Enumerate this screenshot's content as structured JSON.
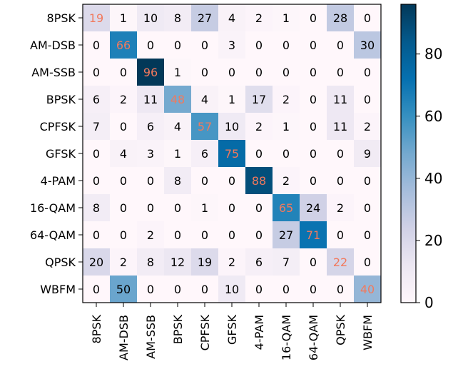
{
  "chart_data": {
    "type": "heatmap",
    "title": "",
    "xlabel": "",
    "ylabel": "",
    "x_categories": [
      "8PSK",
      "AM-DSB",
      "AM-SSB",
      "BPSK",
      "CPFSK",
      "GFSK",
      "4-PAM",
      "16-QAM",
      "64-QAM",
      "QPSK",
      "WBFM"
    ],
    "y_categories": [
      "8PSK",
      "AM-DSB",
      "AM-SSB",
      "BPSK",
      "CPFSK",
      "GFSK",
      "4-PAM",
      "16-QAM",
      "64-QAM",
      "QPSK",
      "WBFM"
    ],
    "values": [
      [
        19,
        1,
        10,
        8,
        27,
        4,
        2,
        1,
        0,
        28,
        0
      ],
      [
        0,
        66,
        0,
        0,
        0,
        3,
        0,
        0,
        0,
        0,
        30
      ],
      [
        0,
        0,
        96,
        1,
        0,
        0,
        0,
        0,
        0,
        0,
        0
      ],
      [
        6,
        2,
        11,
        48,
        4,
        1,
        17,
        2,
        0,
        11,
        0
      ],
      [
        7,
        0,
        6,
        4,
        57,
        10,
        2,
        1,
        0,
        11,
        2
      ],
      [
        0,
        4,
        3,
        1,
        6,
        75,
        0,
        0,
        0,
        0,
        9
      ],
      [
        0,
        0,
        0,
        8,
        0,
        0,
        88,
        2,
        0,
        0,
        0
      ],
      [
        8,
        0,
        0,
        0,
        1,
        0,
        0,
        65,
        24,
        2,
        0
      ],
      [
        0,
        0,
        2,
        0,
        0,
        0,
        0,
        27,
        71,
        0,
        0
      ],
      [
        20,
        2,
        8,
        12,
        19,
        2,
        6,
        7,
        0,
        22,
        0
      ],
      [
        0,
        50,
        0,
        0,
        0,
        10,
        0,
        0,
        0,
        0,
        40
      ]
    ],
    "colormap": "PuBu",
    "vmin": 0,
    "vmax": 96,
    "colorbar_ticks": [
      0,
      20,
      40,
      60,
      80
    ],
    "diagonal_text_color": "#f2795c",
    "offdiagonal_text_color": "#000000",
    "grid": false,
    "legend": "colorbar-right"
  }
}
